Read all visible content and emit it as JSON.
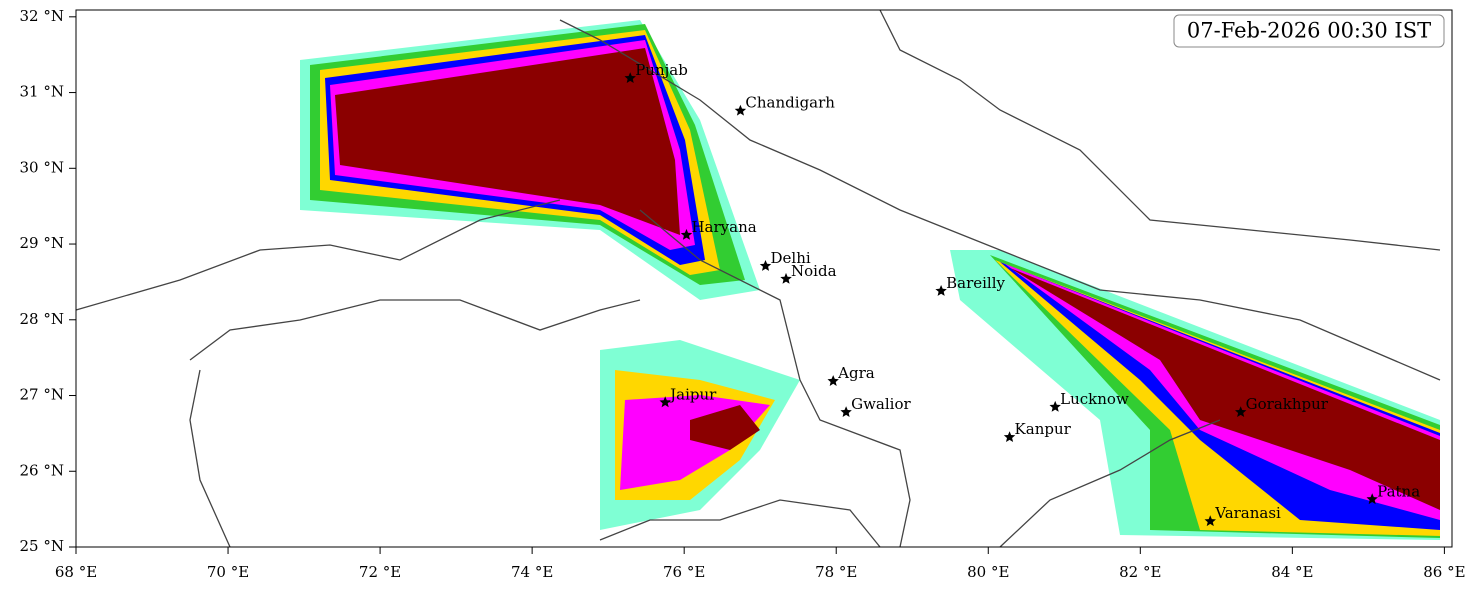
{
  "chart_data": {
    "type": "map",
    "annotation": "07-Feb-2026 00:30 IST",
    "xlim": [
      68,
      86.1
    ],
    "ylim": [
      25,
      32.09
    ],
    "xticks": [
      {
        "value": 68,
        "label": "68 °E"
      },
      {
        "value": 70,
        "label": "70 °E"
      },
      {
        "value": 72,
        "label": "72 °E"
      },
      {
        "value": 74,
        "label": "74 °E"
      },
      {
        "value": 76,
        "label": "76 °E"
      },
      {
        "value": 78,
        "label": "78 °E"
      },
      {
        "value": 80,
        "label": "80 °E"
      },
      {
        "value": 82,
        "label": "82 °E"
      },
      {
        "value": 84,
        "label": "84 °E"
      },
      {
        "value": 86,
        "label": "86 °E"
      }
    ],
    "yticks": [
      {
        "value": 25,
        "label": "25 °N"
      },
      {
        "value": 26,
        "label": "26 °N"
      },
      {
        "value": 27,
        "label": "27 °N"
      },
      {
        "value": 28,
        "label": "28 °N"
      },
      {
        "value": 29,
        "label": "29 °N"
      },
      {
        "value": 30,
        "label": "30 °N"
      },
      {
        "value": 31,
        "label": "31 °N"
      },
      {
        "value": 32,
        "label": "32 °N"
      }
    ],
    "cities": [
      {
        "name": "Punjab",
        "lon": 75.29,
        "lat": 31.19
      },
      {
        "name": "Chandigarh",
        "lon": 76.74,
        "lat": 30.76
      },
      {
        "name": "Haryana",
        "lon": 76.03,
        "lat": 29.12
      },
      {
        "name": "Delhi",
        "lon": 77.07,
        "lat": 28.71
      },
      {
        "name": "Noida",
        "lon": 77.34,
        "lat": 28.54
      },
      {
        "name": "Bareilly",
        "lon": 79.38,
        "lat": 28.38
      },
      {
        "name": "Jaipur",
        "lon": 75.75,
        "lat": 26.91
      },
      {
        "name": "Agra",
        "lon": 77.96,
        "lat": 27.19
      },
      {
        "name": "Gwalior",
        "lon": 78.13,
        "lat": 26.78
      },
      {
        "name": "Lucknow",
        "lon": 80.88,
        "lat": 26.85
      },
      {
        "name": "Kanpur",
        "lon": 80.28,
        "lat": 26.45
      },
      {
        "name": "Gorakhpur",
        "lon": 83.32,
        "lat": 26.78
      },
      {
        "name": "Patna",
        "lon": 85.05,
        "lat": 25.63
      },
      {
        "name": "Varanasi",
        "lon": 82.92,
        "lat": 25.34
      }
    ]
  }
}
